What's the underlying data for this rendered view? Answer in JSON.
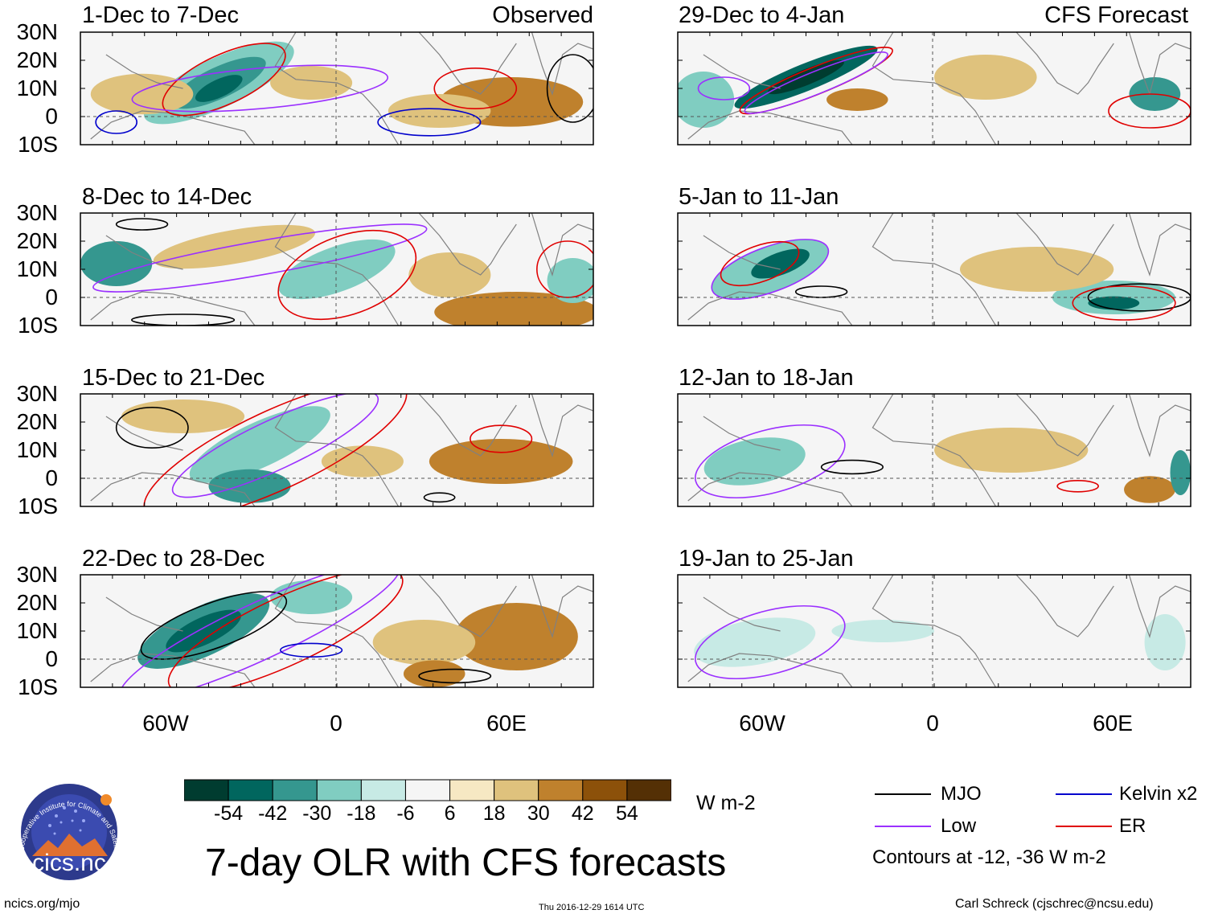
{
  "title": "7-day OLR with CFS forecasts",
  "units": "W m-2",
  "observed_label": "Observed",
  "forecast_label": "CFS Forecast",
  "observed_panels": [
    {
      "label": "1-Dec to 7-Dec"
    },
    {
      "label": "8-Dec to 14-Dec"
    },
    {
      "label": "15-Dec to 21-Dec"
    },
    {
      "label": "22-Dec to 28-Dec"
    }
  ],
  "forecast_panels": [
    {
      "label": "29-Dec to 4-Jan"
    },
    {
      "label": "5-Jan to 11-Jan"
    },
    {
      "label": "12-Jan to 18-Jan"
    },
    {
      "label": "19-Jan to 25-Jan"
    }
  ],
  "lat_labels": [
    "30N",
    "20N",
    "10N",
    "0",
    "10S"
  ],
  "lon_labels": [
    "60W",
    "0",
    "60E"
  ],
  "colorbar": {
    "colors": [
      "#003c30",
      "#01665e",
      "#35978f",
      "#80cdc1",
      "#c7eae5",
      "#f5f5f5",
      "#f6e8c3",
      "#dfc27d",
      "#bf812d",
      "#8c510a",
      "#543005"
    ],
    "labels": [
      "-54",
      "-42",
      "-30",
      "-18",
      "-6",
      "6",
      "18",
      "30",
      "42",
      "54"
    ]
  },
  "legend": {
    "items": [
      {
        "label": "MJO",
        "color": "#000000"
      },
      {
        "label": "Kelvin x2",
        "color": "#0000cc"
      },
      {
        "label": "Low",
        "color": "#9b30ff"
      },
      {
        "label": "ER",
        "color": "#e00000"
      }
    ],
    "note": "Contours at -12, -36 W m-2"
  },
  "logo_text": "cics.nc",
  "logo_ring_text": "Cooperative Institute for Climate and Satellites",
  "footer": {
    "left": "ncics.org/mjo",
    "center": "Thu 2016-12-29 1614 UTC",
    "right": "Carl Schreck (cjschrec@ncsu.edu)"
  }
}
